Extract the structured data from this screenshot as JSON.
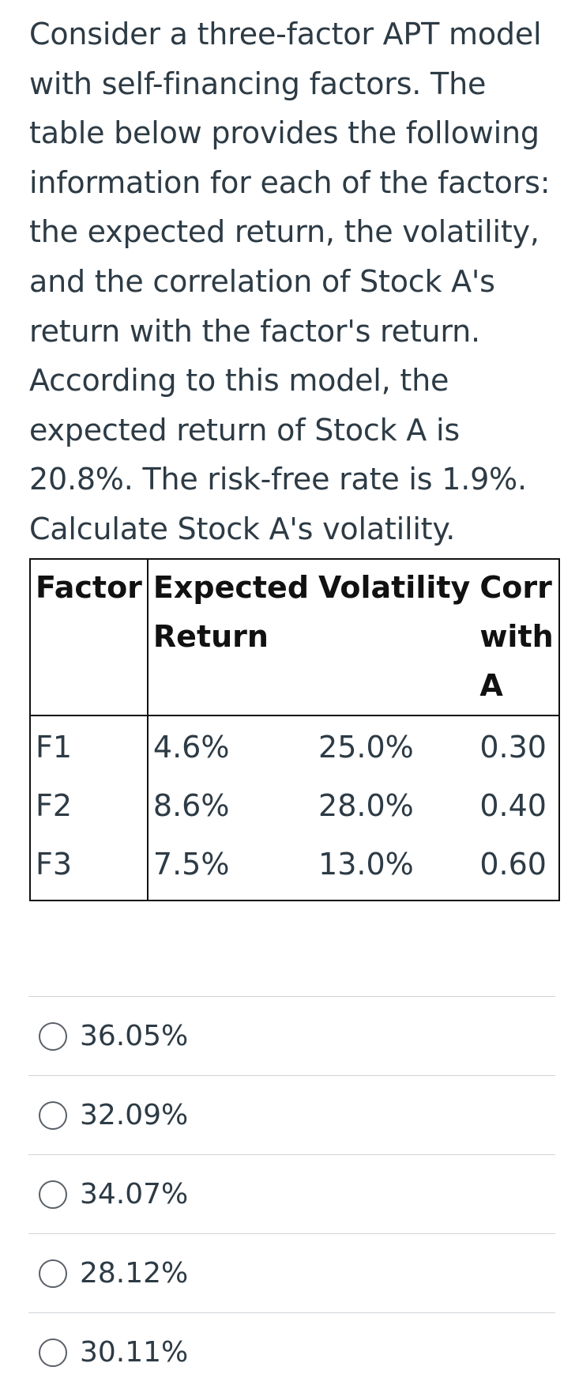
{
  "question": {
    "text": "Consider a three-factor APT model with self-financing factors. The table below provides the following information for each of the factors: the expected return, the volatility, and the correlation of Stock A's return with the factor's return. According to this model, the expected return of Stock A is 20.8%. The risk-free rate is 1.9%. Calculate Stock A's volatility."
  },
  "table": {
    "headers": [
      "Factor",
      "Expected Return",
      "Volatility",
      "Corr with A"
    ],
    "rows": [
      [
        "F1",
        "4.6%",
        "25.0%",
        "0.30"
      ],
      [
        "F2",
        "8.6%",
        "28.0%",
        "0.40"
      ],
      [
        "F3",
        "7.5%",
        "13.0%",
        "0.60"
      ]
    ]
  },
  "answers": [
    {
      "label": "36.05%"
    },
    {
      "label": "32.09%"
    },
    {
      "label": "34.07%"
    },
    {
      "label": "28.12%"
    },
    {
      "label": "30.11%"
    }
  ],
  "colors": {
    "text": "#2d3b45",
    "border": "#111111",
    "divider": "#d0d4d8",
    "radio_border": "#5a6068"
  }
}
